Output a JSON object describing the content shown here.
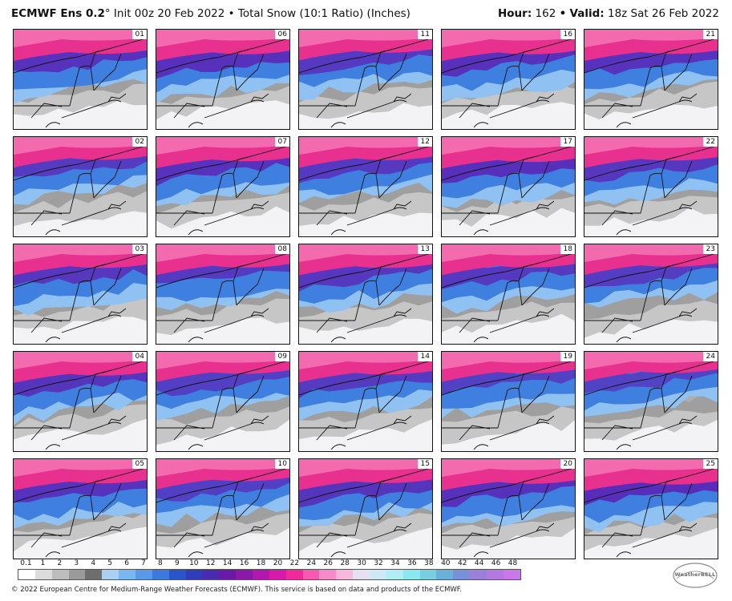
{
  "header": {
    "model": "ECMWF Ens 0.2",
    "degree": "°",
    "init": "Init 00z 20 Feb 2022",
    "bullet": "•",
    "product": "Total Snow (10:1 Ratio) (Inches)",
    "hour_label": "Hour:",
    "hour_value": "162",
    "valid_label": "Valid:",
    "valid_value": "18z Sat 26 Feb 2022"
  },
  "panels": [
    {
      "id": "01",
      "intensity": 0.75
    },
    {
      "id": "06",
      "intensity": 0.8
    },
    {
      "id": "11",
      "intensity": 0.6
    },
    {
      "id": "16",
      "intensity": 0.8
    },
    {
      "id": "21",
      "intensity": 0.75
    },
    {
      "id": "02",
      "intensity": 0.55
    },
    {
      "id": "07",
      "intensity": 0.75
    },
    {
      "id": "12",
      "intensity": 0.6
    },
    {
      "id": "17",
      "intensity": 0.85
    },
    {
      "id": "22",
      "intensity": 0.65
    },
    {
      "id": "03",
      "intensity": 0.65
    },
    {
      "id": "08",
      "intensity": 0.6
    },
    {
      "id": "13",
      "intensity": 0.65
    },
    {
      "id": "18",
      "intensity": 0.6
    },
    {
      "id": "23",
      "intensity": 0.5
    },
    {
      "id": "04",
      "intensity": 0.7
    },
    {
      "id": "09",
      "intensity": 0.45
    },
    {
      "id": "14",
      "intensity": 0.55
    },
    {
      "id": "19",
      "intensity": 0.4
    },
    {
      "id": "24",
      "intensity": 0.35
    },
    {
      "id": "05",
      "intensity": 0.75
    },
    {
      "id": "10",
      "intensity": 0.45
    },
    {
      "id": "15",
      "intensity": 0.7
    },
    {
      "id": "20",
      "intensity": 0.8
    },
    {
      "id": "25",
      "intensity": 0.9
    }
  ],
  "legend": {
    "ticks": [
      "0.1",
      "1",
      "2",
      "3",
      "4",
      "5",
      "6",
      "7",
      "8",
      "9",
      "10",
      "12",
      "14",
      "16",
      "18",
      "20",
      "22",
      "24",
      "26",
      "28",
      "30",
      "32",
      "34",
      "36",
      "38",
      "40",
      "42",
      "44",
      "46",
      "48"
    ],
    "colors": [
      "#ffffff",
      "#dcdcdc",
      "#bdbdbd",
      "#9a9a9a",
      "#6e6e6e",
      "#a9cff2",
      "#7ab6f0",
      "#5a98e8",
      "#3d78dc",
      "#2a55c8",
      "#2f3db8",
      "#4a2ab0",
      "#6a1aa8",
      "#8a18a8",
      "#b018b0",
      "#d81aa8",
      "#f02a9a",
      "#f55ab0",
      "#f78ac8",
      "#f8b8dc",
      "#e6e0f0",
      "#cfe8f5",
      "#b0eef5",
      "#8ae8f0",
      "#78cfe0",
      "#6ab0d8",
      "#7890d8",
      "#9a80d8",
      "#b478e0",
      "#c878e8"
    ]
  },
  "footer": "© 2022 European Centre for Medium-Range Weather Forecasts (ECMWF). This service is based on data and products of the ECMWF.",
  "logo": "WeatherBELL"
}
